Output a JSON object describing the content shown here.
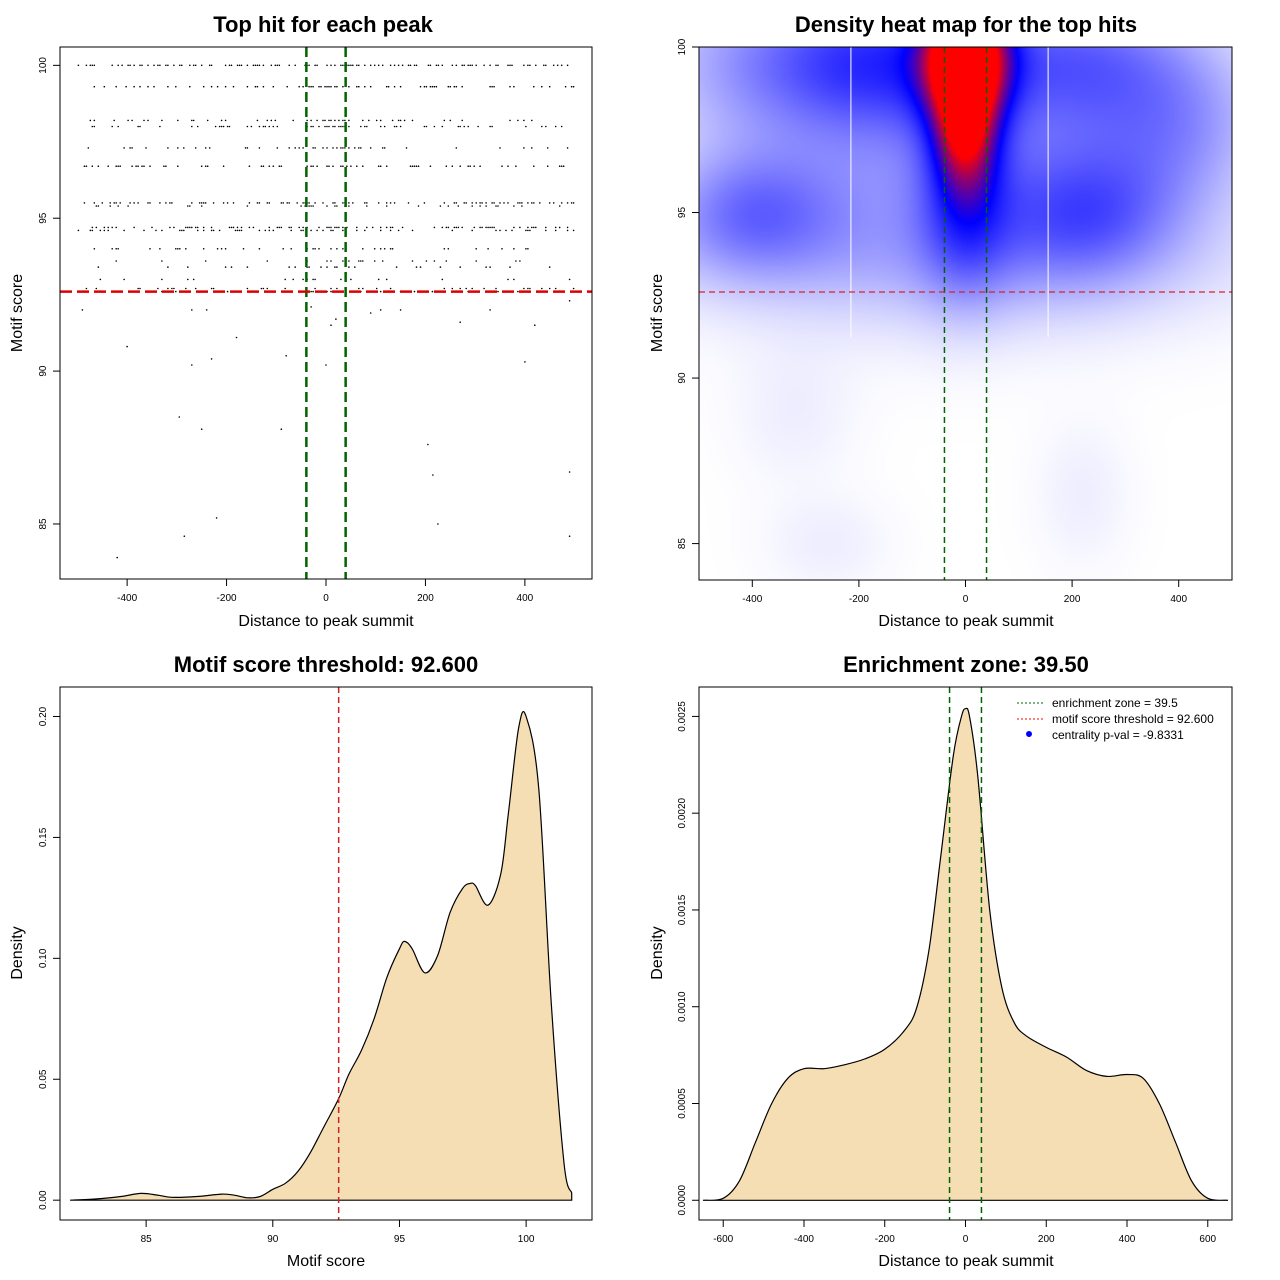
{
  "colors": {
    "centrality_line": "#006400",
    "threshold_line": "#ff0000",
    "density_fill": "#f5deb3",
    "heat_low": "#ffffff",
    "heat_mid": "#0000ff",
    "heat_high": "#ff0000"
  },
  "chart_data": [
    {
      "id": "scatter",
      "type": "scatter",
      "title": "Top hit for each peak",
      "xlabel": "Distance to peak summit",
      "ylabel": "Motif score",
      "xlim": [
        -535,
        535
      ],
      "ylim": [
        83.2,
        100.6
      ],
      "xticks": [
        -400,
        -200,
        0,
        200,
        400
      ],
      "yticks": [
        85,
        90,
        95,
        100
      ],
      "xtick_labels": [
        "-400",
        "-200",
        "0",
        "200",
        "400"
      ],
      "ytick_labels": [
        "85",
        "90",
        "95",
        "100"
      ],
      "grid": false,
      "vlines": [
        -39.5,
        39.5
      ],
      "hline": 92.6,
      "score_levels": [
        100,
        99.3,
        98.2,
        98.0,
        97.3,
        96.7,
        95.5,
        95.4,
        94.7,
        94.6,
        94.0,
        93.6,
        93.4,
        93.0,
        92.7,
        92.6
      ],
      "level_density": [
        0.42,
        0.22,
        0.12,
        0.2,
        0.15,
        0.22,
        0.3,
        0.12,
        0.3,
        0.2,
        0.14,
        0.12,
        0.12,
        0.08,
        0.15,
        0.2
      ],
      "outliers": [
        {
          "x": -490,
          "y": 92.0
        },
        {
          "x": -400,
          "y": 90.8
        },
        {
          "x": -270,
          "y": 92.0
        },
        {
          "x": -240,
          "y": 92.0
        },
        {
          "x": -180,
          "y": 91.1
        },
        {
          "x": -230,
          "y": 90.4
        },
        {
          "x": -270,
          "y": 90.2
        },
        {
          "x": -80,
          "y": 90.5
        },
        {
          "x": -30,
          "y": 92.1
        },
        {
          "x": 0,
          "y": 90.2
        },
        {
          "x": 10,
          "y": 91.5
        },
        {
          "x": 20,
          "y": 91.7
        },
        {
          "x": 90,
          "y": 91.9
        },
        {
          "x": 110,
          "y": 92.0
        },
        {
          "x": 150,
          "y": 92.0
        },
        {
          "x": 270,
          "y": 91.6
        },
        {
          "x": 330,
          "y": 92.0
        },
        {
          "x": 400,
          "y": 90.3
        },
        {
          "x": 420,
          "y": 91.5
        },
        {
          "x": 490,
          "y": 92.3
        },
        {
          "x": -295,
          "y": 88.5
        },
        {
          "x": -250,
          "y": 88.1
        },
        {
          "x": -90,
          "y": 88.1
        },
        {
          "x": 205,
          "y": 87.6
        },
        {
          "x": 215,
          "y": 86.6
        },
        {
          "x": 490,
          "y": 86.7
        },
        {
          "x": -220,
          "y": 85.2
        },
        {
          "x": 225,
          "y": 85.0
        },
        {
          "x": -285,
          "y": 84.6
        },
        {
          "x": 490,
          "y": 84.6
        },
        {
          "x": -420,
          "y": 83.9
        }
      ]
    },
    {
      "id": "heatmap",
      "type": "heatmap",
      "title": "Density heat map for the top hits",
      "xlabel": "Distance to peak summit",
      "ylabel": "Motif score",
      "xlim": [
        -500,
        500
      ],
      "ylim": [
        83.9,
        100
      ],
      "xticks": [
        -400,
        -200,
        0,
        200,
        400
      ],
      "yticks": [
        85,
        90,
        95,
        100
      ],
      "xtick_labels": [
        "-400",
        "-200",
        "0",
        "200",
        "400"
      ],
      "ytick_labels": [
        "85",
        "90",
        "95",
        "100"
      ],
      "vlines": [
        -39.5,
        39.5
      ],
      "white_vlines": [
        -215,
        155
      ],
      "hline": 92.6,
      "blobs": [
        {
          "x": 0,
          "y": 99.8,
          "sx": 55,
          "sy": 1.3,
          "w": 1.0
        },
        {
          "x": 0,
          "y": 97.6,
          "sx": 40,
          "sy": 1.3,
          "w": 0.55
        },
        {
          "x": 0,
          "y": 95.5,
          "sx": 60,
          "sy": 2.0,
          "w": 0.3
        },
        {
          "x": -150,
          "y": 99.7,
          "sx": 130,
          "sy": 1.5,
          "w": 0.3
        },
        {
          "x": 200,
          "y": 99.7,
          "sx": 160,
          "sy": 1.5,
          "w": 0.3
        },
        {
          "x": -360,
          "y": 99.5,
          "sx": 160,
          "sy": 1.8,
          "w": 0.25
        },
        {
          "x": 400,
          "y": 97.5,
          "sx": 120,
          "sy": 1.8,
          "w": 0.22
        },
        {
          "x": -400,
          "y": 95.0,
          "sx": 120,
          "sy": 1.4,
          "w": 0.3
        },
        {
          "x": 230,
          "y": 95.0,
          "sx": 120,
          "sy": 1.4,
          "w": 0.25
        },
        {
          "x": -130,
          "y": 96.5,
          "sx": 150,
          "sy": 2.5,
          "w": 0.15
        },
        {
          "x": 150,
          "y": 96.5,
          "sx": 150,
          "sy": 2.5,
          "w": 0.15
        },
        {
          "x": 0,
          "y": 93.5,
          "sx": 400,
          "sy": 1.5,
          "w": 0.12
        },
        {
          "x": -320,
          "y": 89.0,
          "sx": 80,
          "sy": 1.5,
          "w": 0.04
        },
        {
          "x": 220,
          "y": 86.5,
          "sx": 60,
          "sy": 1.5,
          "w": 0.04
        },
        {
          "x": -260,
          "y": 85.0,
          "sx": 80,
          "sy": 1.0,
          "w": 0.04
        }
      ]
    },
    {
      "id": "score-density",
      "type": "area",
      "title": "Motif score threshold: 92.600",
      "xlabel": "Motif score",
      "ylabel": "Density",
      "xlim": [
        81.6,
        102.6
      ],
      "ylim": [
        -0.0082,
        0.2122
      ],
      "xticks": [
        85,
        90,
        95,
        100
      ],
      "yticks": [
        0.0,
        0.05,
        0.1,
        0.15,
        0.2
      ],
      "xtick_labels": [
        "85",
        "90",
        "95",
        "100"
      ],
      "ytick_labels": [
        "0.00",
        "0.05",
        "0.10",
        "0.15",
        "0.20"
      ],
      "vline": 92.6,
      "x": [
        82,
        83,
        84,
        84.8,
        85.5,
        86,
        87,
        88,
        88.5,
        89,
        89.5,
        90,
        90.5,
        91,
        91.5,
        92,
        92.6,
        93,
        93.5,
        94,
        94.5,
        95,
        95.2,
        95.5,
        96,
        96.5,
        97,
        97.5,
        97.8,
        98,
        98.5,
        99,
        99.3,
        99.7,
        100,
        100.5,
        101,
        101.5,
        101.8
      ],
      "y": [
        0.0,
        0.0005,
        0.0015,
        0.0028,
        0.002,
        0.0012,
        0.0015,
        0.0025,
        0.002,
        0.001,
        0.0015,
        0.0045,
        0.007,
        0.012,
        0.02,
        0.03,
        0.042,
        0.052,
        0.062,
        0.075,
        0.092,
        0.104,
        0.107,
        0.104,
        0.094,
        0.101,
        0.119,
        0.129,
        0.131,
        0.13,
        0.122,
        0.135,
        0.16,
        0.195,
        0.2,
        0.17,
        0.08,
        0.015,
        0.003
      ]
    },
    {
      "id": "distance-density",
      "type": "area",
      "title": "Enrichment zone: 39.50",
      "xlabel": "Distance to peak summit",
      "ylabel": "Density",
      "xlim": [
        -660,
        660
      ],
      "ylim": [
        -0.000102,
        0.002652
      ],
      "xticks": [
        -600,
        -400,
        -200,
        0,
        200,
        400,
        600
      ],
      "yticks": [
        0.0,
        0.0005,
        0.001,
        0.0015,
        0.002,
        0.0025
      ],
      "xtick_labels": [
        "-600",
        "-400",
        "-200",
        "0",
        "200",
        "400",
        "600"
      ],
      "ytick_labels": [
        "0.0000",
        "0.0005",
        "0.0010",
        "0.0015",
        "0.0020",
        "0.0025"
      ],
      "vlines": [
        -39.5,
        39.5
      ],
      "x": [
        -650,
        -600,
        -560,
        -520,
        -480,
        -440,
        -400,
        -350,
        -300,
        -250,
        -200,
        -150,
        -120,
        -90,
        -60,
        -30,
        -10,
        0,
        10,
        30,
        60,
        90,
        120,
        150,
        200,
        250,
        300,
        350,
        400,
        440,
        480,
        520,
        560,
        600,
        650
      ],
      "y": [
        0.0,
        1e-05,
        0.0001,
        0.0003,
        0.0005,
        0.00063,
        0.00068,
        0.00068,
        0.0007,
        0.00073,
        0.00078,
        0.00088,
        0.001,
        0.0013,
        0.0018,
        0.0023,
        0.0025,
        0.00254,
        0.0025,
        0.0022,
        0.0015,
        0.0011,
        0.00092,
        0.00085,
        0.00079,
        0.00074,
        0.00067,
        0.00064,
        0.00065,
        0.00063,
        0.0005,
        0.0003,
        0.0001,
        1e-05,
        0.0
      ],
      "legend": {
        "position": "top-right",
        "items": [
          {
            "label": "enrichment zone = 39.5",
            "style": "dotted-line",
            "color": "#006400"
          },
          {
            "label": "motif score threshold = 92.600",
            "style": "dotted-line",
            "color": "#ff0000"
          },
          {
            "label": "centrality p-val = -9.8331",
            "style": "point",
            "color": "#0000ff"
          }
        ]
      }
    }
  ]
}
